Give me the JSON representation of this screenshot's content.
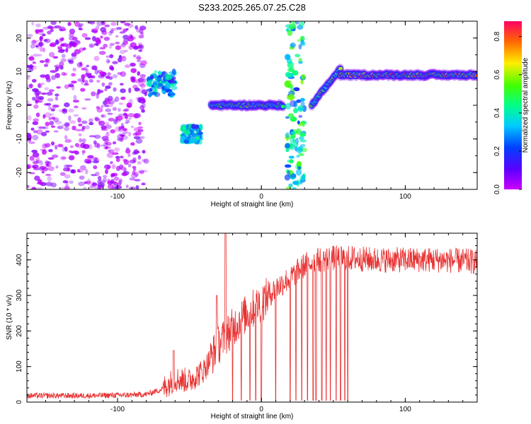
{
  "title": "S233.2025.265.07.25.C28",
  "chart_data": [
    {
      "type": "heatmap",
      "name": "spectrogram",
      "xlabel": "Height of straight line (km)",
      "ylabel": "Frequency (Hz)",
      "xlim": [
        -163,
        150
      ],
      "ylim": [
        -25,
        25
      ],
      "xticks": [
        -100,
        0,
        100
      ],
      "yticks": [
        -20,
        -10,
        0,
        10,
        20
      ],
      "colorbar": {
        "label": "Normalized spectral amplitude",
        "range": [
          0.0,
          0.88
        ],
        "ticks": [
          0.0,
          0.2,
          0.4,
          0.6,
          0.8
        ],
        "colormap": "rainbow (magenta-blue-cyan-green-yellow-red)"
      },
      "features": [
        {
          "description": "noise floor",
          "x_range": [
            -163,
            -80
          ],
          "freq_range": [
            -25,
            25
          ],
          "amplitude": 0.1
        },
        {
          "description": "segment",
          "x_range": [
            -78,
            -60
          ],
          "freq_range": [
            3,
            10
          ],
          "amplitude": 0.35
        },
        {
          "description": "segment",
          "x_range": [
            -55,
            -42
          ],
          "freq_range": [
            -11,
            -6
          ],
          "amplitude": 0.35
        },
        {
          "description": "tone",
          "x_range": [
            -35,
            15
          ],
          "freq_center": 0,
          "amplitude": 0.6
        },
        {
          "description": "spikes",
          "x_range": [
            18,
            30
          ],
          "freq_range": [
            -25,
            25
          ],
          "amplitude": 0.45
        },
        {
          "description": "ramp",
          "x_range": [
            35,
            55
          ],
          "freq_from": 0,
          "freq_to": 11,
          "amplitude": 0.6
        },
        {
          "description": "tone",
          "x_range": [
            55,
            150
          ],
          "freq_center": 9,
          "amplitude": 0.8
        }
      ]
    },
    {
      "type": "line",
      "name": "snr",
      "xlabel": "Height of straight line (km)",
      "ylabel": "SNR (10 * v/v)",
      "xlim": [
        -163,
        150
      ],
      "ylim": [
        0,
        475
      ],
      "xticks": [
        -100,
        0,
        100
      ],
      "yticks": [
        0,
        100,
        200,
        300,
        400
      ],
      "color": "#e83030",
      "profile": {
        "x": [
          -163,
          -120,
          -90,
          -80,
          -70,
          -60,
          -50,
          -40,
          -30,
          -20,
          -10,
          0,
          10,
          20,
          30,
          40,
          50,
          60,
          80,
          100,
          120,
          150
        ],
        "y": [
          18,
          18,
          20,
          22,
          35,
          65,
          60,
          90,
          160,
          210,
          250,
          280,
          320,
          350,
          385,
          400,
          405,
          405,
          400,
          400,
          400,
          395
        ]
      },
      "peaks": [
        {
          "x": -25,
          "y": 475
        },
        {
          "x": -31,
          "y": 300
        },
        {
          "x": -61,
          "y": 145
        }
      ],
      "dropouts_x": [
        -20,
        -14,
        -8,
        -4,
        0,
        10,
        20,
        24,
        28,
        32,
        36,
        38,
        42,
        45,
        48,
        52,
        55,
        58,
        60
      ]
    }
  ]
}
